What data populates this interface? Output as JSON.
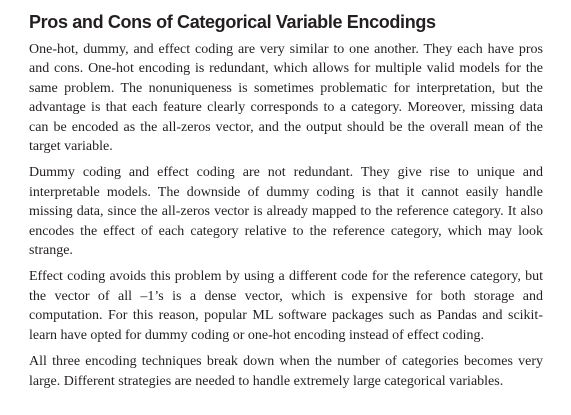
{
  "section": {
    "title": "Pros and Cons of Categorical Variable Encodings",
    "paragraphs": [
      "One-hot, dummy, and effect coding are very similar to one another. They each have pros and cons. One-hot encoding is redundant, which allows for multiple valid mod­els for the same problem. The nonuniqueness is sometimes problematic for interpre­tation, but the advantage is that each feature clearly corresponds to a category. Moreover, missing data can be encoded as the all-zeros vector, and the output should be the overall mean of the target variable.",
      "Dummy coding and effect coding are not redundant. They give rise to unique and interpretable models. The downside of dummy coding is that it cannot easily handle missing data, since the all-zeros vector is already mapped to the reference category. It also encodes the effect of each category relative to the reference category, which may look strange.",
      "Effect coding avoids this problem by using a different code for the reference category, but the vector of all –1’s is a dense vector, which is expensive for both storage and computation. For this reason, popular ML software packages such as Pandas and scikit-learn have opted for dummy coding or one-hot encoding instead of effect coding.",
      "All three encoding techniques break down when the number of categories becomes very large. Different strategies are needed to handle extremely large categorical variables."
    ]
  }
}
